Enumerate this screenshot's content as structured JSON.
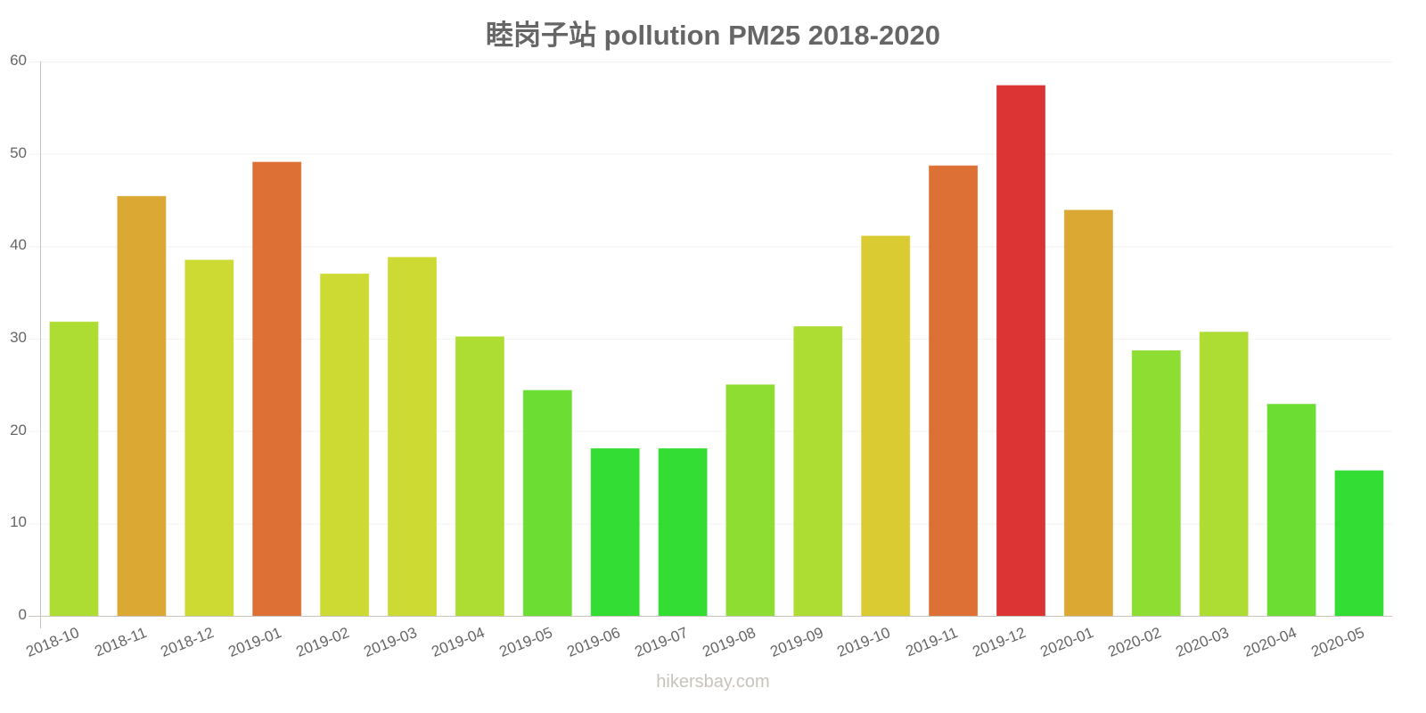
{
  "chart_data": {
    "type": "bar",
    "title": "睦岗子站 pollution PM25 2018-2020",
    "xlabel": "",
    "ylabel": "",
    "ylim": [
      0,
      60
    ],
    "yticks": [
      0,
      10,
      20,
      30,
      40,
      50,
      60
    ],
    "grid": true,
    "legend": null,
    "categories": [
      "2018-10",
      "2018-11",
      "2018-12",
      "2019-01",
      "2019-02",
      "2019-03",
      "2019-04",
      "2019-05",
      "2019-06",
      "2019-07",
      "2019-08",
      "2019-09",
      "2019-10",
      "2019-11",
      "2019-12",
      "2020-01",
      "2020-02",
      "2020-03",
      "2020-04",
      "2020-05"
    ],
    "values": [
      31.8,
      45.4,
      38.5,
      49.1,
      37.0,
      38.8,
      30.2,
      24.4,
      18.1,
      18.1,
      25.0,
      31.3,
      41.1,
      48.7,
      57.4,
      43.9,
      28.7,
      30.7,
      22.9,
      15.7
    ],
    "colors": [
      "#addd33",
      "#dba834",
      "#cdda33",
      "#dd7034",
      "#cdda33",
      "#cdda33",
      "#addd33",
      "#6bdd33",
      "#33dd33",
      "#33dd33",
      "#8ddd33",
      "#addd33",
      "#dacb33",
      "#dd7034",
      "#dc3434",
      "#dba834",
      "#8ddd33",
      "#addd33",
      "#6bdd33",
      "#33dd33"
    ]
  },
  "footer": {
    "watermark": "hikersbay.com"
  }
}
